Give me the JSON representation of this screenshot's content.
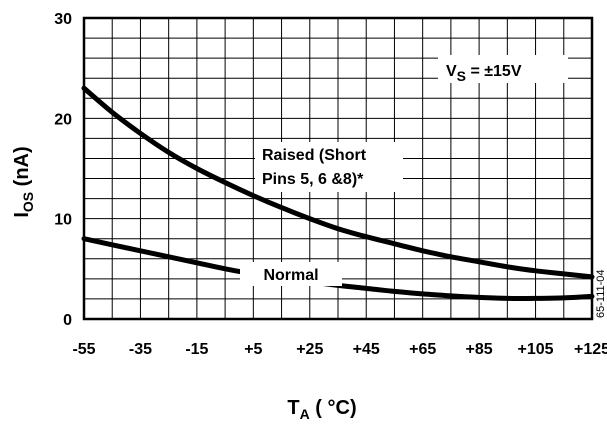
{
  "chart_data": {
    "type": "line",
    "title": "",
    "xlabel": {
      "main": "T",
      "sub": "A",
      "rest": " ( °C)"
    },
    "ylabel": {
      "main": "I",
      "sub": "OS",
      "rest": " (nA)"
    },
    "xlim": [
      -55,
      125
    ],
    "ylim": [
      0,
      30
    ],
    "x_ticks": [
      "-55",
      "-35",
      "-15",
      "+5",
      "+25",
      "+45",
      "+65",
      "+85",
      "+105",
      "+125"
    ],
    "y_ticks": [
      "0",
      "10",
      "20",
      "30"
    ],
    "grid": true,
    "series": [
      {
        "name": "Raised (Short Pins 5, 6 &8)*",
        "x": [
          -55,
          -45,
          -35,
          -25,
          -15,
          -5,
          5,
          15,
          25,
          35,
          45,
          55,
          65,
          75,
          85,
          95,
          105,
          115,
          125
        ],
        "y": [
          23,
          20.6,
          18.5,
          16.6,
          15,
          13.6,
          12.3,
          11.1,
          10,
          9,
          8.2,
          7.5,
          6.8,
          6.2,
          5.7,
          5.2,
          4.8,
          4.5,
          4.2
        ]
      },
      {
        "name": "Normal",
        "x": [
          -55,
          -45,
          -35,
          -25,
          -15,
          -5,
          5,
          15,
          25,
          35,
          45,
          55,
          65,
          75,
          85,
          95,
          105,
          115,
          125
        ],
        "y": [
          8,
          7.4,
          6.8,
          6.2,
          5.6,
          5,
          4.5,
          4.1,
          3.7,
          3.35,
          3.05,
          2.75,
          2.5,
          2.3,
          2.15,
          2.05,
          2.05,
          2.1,
          2.25
        ]
      }
    ],
    "annotations": {
      "vs_label": {
        "main": "V",
        "sub": "S",
        "rest": " = ±15V"
      },
      "raised_line1": "Raised (Short",
      "raised_line2": "Pins 5, 6 &8)*",
      "normal": "Normal"
    },
    "figure_id": "65-111-04"
  }
}
